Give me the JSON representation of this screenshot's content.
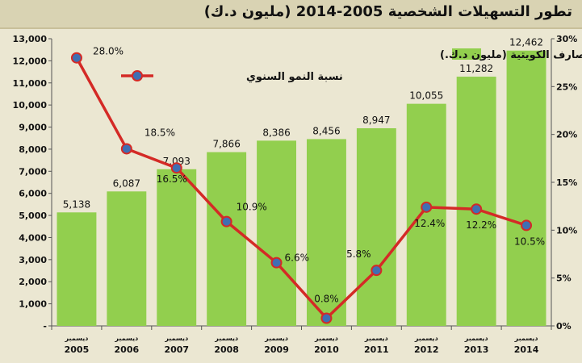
{
  "chart_data": {
    "type": "bar",
    "title": "تطور التسهيلات الشخصية 2005-2014 (مليون د.ك)",
    "categories": [
      "ديسمبر 2005",
      "ديسمبر 2006",
      "ديسمبر 2007",
      "ديسمبر 2008",
      "ديسمبر 2009",
      "ديسمبر 2010",
      "ديسمبر 2011",
      "ديسمبر 2012",
      "ديسمبر 2013",
      "ديسمبر 2014"
    ],
    "category_month": "ديسمبر",
    "category_years": [
      "2005",
      "2006",
      "2007",
      "2008",
      "2009",
      "2010",
      "2011",
      "2012",
      "2013",
      "2014"
    ],
    "series": [
      {
        "name": "التسهيلات الشخصية المقدمة من المصارف الكويتية (مليون د.ك.)",
        "kind": "bar",
        "axis": "left",
        "color": "#92cf4e",
        "values": [
          5138,
          6087,
          7093,
          7866,
          8386,
          8456,
          8947,
          10055,
          11282,
          12462
        ],
        "labels": [
          "5,138",
          "6,087",
          "7,093",
          "7,866",
          "8,386",
          "8,456",
          "8,947",
          "10,055",
          "11,282",
          "12,462"
        ]
      },
      {
        "name": "نسبة النمو السنوي",
        "kind": "line",
        "axis": "right",
        "color": "#d42a26",
        "marker_color": "#3f6fb3",
        "values": [
          28.0,
          18.5,
          16.5,
          10.9,
          6.6,
          0.8,
          5.8,
          12.4,
          12.2,
          10.5
        ],
        "labels": [
          "28.0%",
          "18.5%",
          "16.5%",
          "10.9%",
          "6.6%",
          "0.8%",
          "5.8%",
          "12.4%",
          "12.2%",
          "10.5%"
        ]
      }
    ],
    "y_left": {
      "ylim": [
        0,
        13000
      ],
      "ticks": [
        "-",
        "1,000",
        "2,000",
        "3,000",
        "4,000",
        "5,000",
        "6,000",
        "7,000",
        "8,000",
        "9,000",
        "10,000",
        "11,000",
        "12,000",
        "13,000"
      ]
    },
    "y_right": {
      "ylim": [
        0,
        30
      ],
      "ticks": [
        "0%",
        "5%",
        "10%",
        "15%",
        "20%",
        "25%",
        "30%"
      ]
    },
    "grid": false,
    "legend_position": "top-left",
    "background": "#ebe7d2"
  }
}
